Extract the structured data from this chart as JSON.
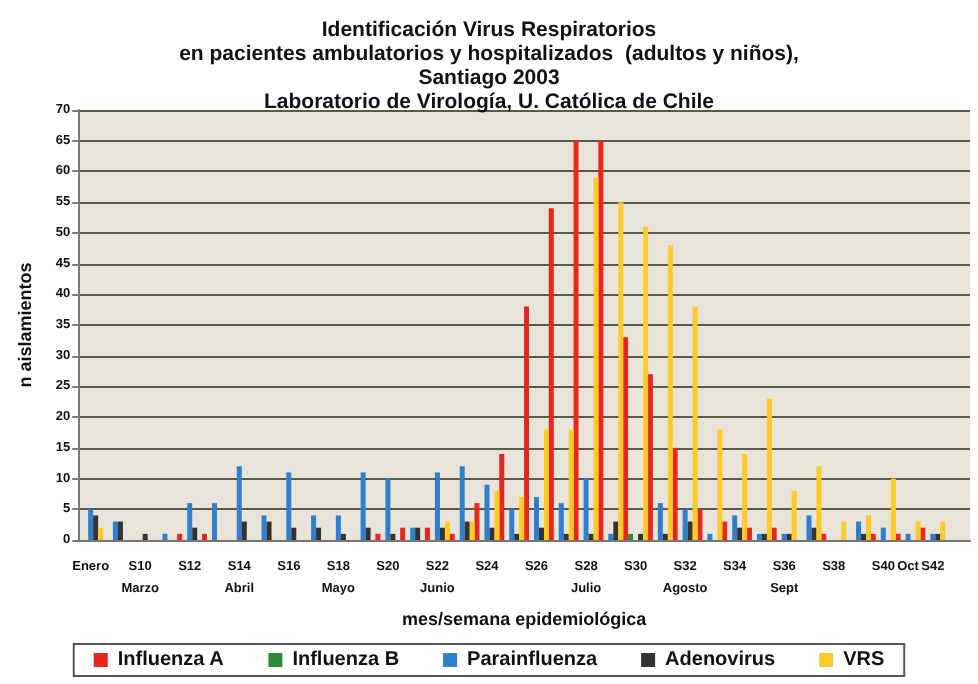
{
  "chart_data": {
    "type": "bar",
    "title": "Identificación Virus Respiratorios\nen pacientes ambulatorios y hospitalizados  (adultos y niños),\nSantiago 2003\nLaboratorio de Virología, U. Católica de Chile",
    "xlabel": "mes/semana epidemiológica",
    "ylabel": "n aislamientos",
    "categories": [
      "Enero",
      null,
      "S10\nMarzo",
      null,
      "S12",
      null,
      "S14\nAbril",
      null,
      "S16",
      null,
      "S18\nMayo",
      null,
      "S20",
      null,
      "S22\nJunio",
      null,
      "S24",
      null,
      "S26",
      null,
      "S28\nJulio",
      null,
      "S30",
      null,
      "S32\nAgosto",
      null,
      "S34",
      null,
      "S36\nSept",
      null,
      "S38",
      null,
      "S40",
      "Oct",
      "S42",
      null
    ],
    "series": [
      {
        "name": "Influenza A",
        "color": "#e8261e",
        "values": [
          0,
          0,
          0,
          0,
          1,
          1,
          0,
          0,
          0,
          0,
          0,
          0,
          1,
          2,
          2,
          1,
          6,
          14,
          38,
          54,
          65,
          65,
          33,
          27,
          15,
          5,
          3,
          2,
          2,
          0,
          1,
          0,
          1,
          1,
          2,
          0
        ]
      },
      {
        "name": "Influenza B",
        "color": "#2e8b3a",
        "values": [
          0,
          0,
          0,
          0,
          0,
          0,
          0,
          0,
          0,
          0,
          0,
          0,
          0,
          0,
          0,
          0,
          0,
          0,
          0,
          0,
          0,
          0,
          1,
          0,
          0,
          0,
          0,
          0,
          0,
          0,
          0,
          0,
          0,
          0,
          0,
          0
        ]
      },
      {
        "name": "Parainfluenza",
        "color": "#2e7fd0",
        "values": [
          5,
          3,
          0,
          1,
          6,
          6,
          12,
          4,
          11,
          4,
          4,
          11,
          10,
          2,
          11,
          12,
          9,
          5,
          7,
          6,
          10,
          1,
          0,
          6,
          5,
          1,
          4,
          1,
          1,
          4,
          0,
          3,
          2,
          1,
          1,
          0
        ]
      },
      {
        "name": "Adenovirus",
        "color": "#333333",
        "values": [
          4,
          3,
          1,
          0,
          2,
          0,
          3,
          3,
          2,
          2,
          1,
          2,
          1,
          2,
          2,
          3,
          2,
          1,
          2,
          1,
          1,
          3,
          1,
          1,
          3,
          0,
          2,
          1,
          1,
          2,
          0,
          1,
          0,
          0,
          1,
          0
        ]
      },
      {
        "name": "VRS",
        "color": "#ffc926",
        "values": [
          2,
          0,
          0,
          0,
          0,
          0,
          0,
          0,
          0,
          0,
          0,
          0,
          0,
          0,
          3,
          3,
          8,
          7,
          18,
          18,
          59,
          55,
          51,
          48,
          38,
          18,
          14,
          23,
          8,
          12,
          3,
          4,
          10,
          3,
          3,
          0
        ]
      }
    ],
    "ylim": [
      0,
      70
    ],
    "yticks": [
      0,
      5,
      10,
      15,
      20,
      25,
      30,
      35,
      40,
      45,
      50,
      55,
      60,
      65,
      70
    ],
    "grid": "y",
    "legend": "bottom"
  }
}
